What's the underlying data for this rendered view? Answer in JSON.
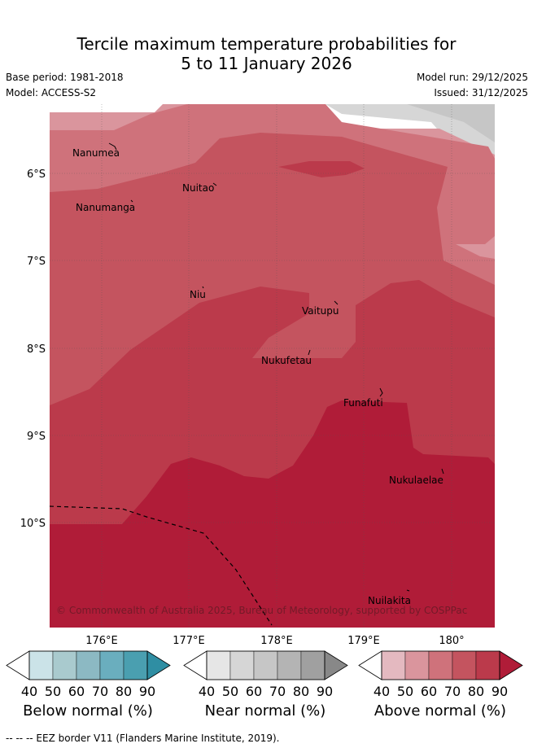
{
  "title_line1": "Tercile maximum temperature probabilities for",
  "title_line2": "5 to 11 January 2026",
  "base_period": "Base period: 1981-2018",
  "model": "Model: ACCESS-S2",
  "model_run": "Model run: 29/12/2025",
  "issued": "Issued: 31/12/2025",
  "lat_labels": [
    "6°S",
    "7°S",
    "8°S",
    "9°S",
    "10°S"
  ],
  "lon_labels": [
    "176°E",
    "177°E",
    "178°E",
    "179°E",
    "180°"
  ],
  "places": [
    "Nanumea",
    "Nuitao",
    "Nanumanga",
    "Niu",
    "Vaitupu",
    "Nukufetau",
    "Funafuti",
    "Nukulaelae",
    "Nuilakita"
  ],
  "copyright": "© Commonwealth of Australia 2025, Bureau of Meteorology, supported by COSPPac",
  "colorbars": [
    {
      "label": "Below normal (%)",
      "ticks": [
        "40",
        "50",
        "60",
        "70",
        "80",
        "90"
      ],
      "colors": [
        "#ffffff",
        "#cbe3e8",
        "#a9cace",
        "#8cb9c3",
        "#6aaebe",
        "#4a9fb0",
        "#2f8ea3"
      ]
    },
    {
      "label": "Near normal (%)",
      "ticks": [
        "40",
        "50",
        "60",
        "70",
        "80",
        "90"
      ],
      "colors": [
        "#ffffff",
        "#e6e6e6",
        "#d6d6d6",
        "#c6c6c6",
        "#b4b4b4",
        "#a0a0a0",
        "#888888"
      ]
    },
    {
      "label": "Above normal (%)",
      "ticks": [
        "40",
        "50",
        "60",
        "70",
        "80",
        "90"
      ],
      "colors": [
        "#ffffff",
        "#e4b9c0",
        "#da959d",
        "#cf727b",
        "#c4545f",
        "#bb3a4b",
        "#b01c38"
      ]
    }
  ],
  "footer": "--  --  -- EEZ border V11 (Flanders Marine Institute, 2019)."
}
